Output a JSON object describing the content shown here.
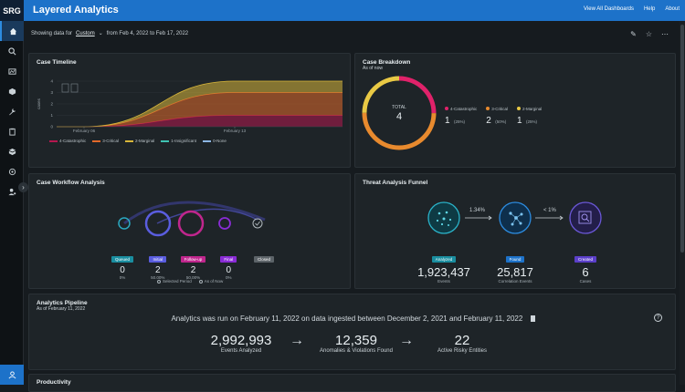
{
  "header": {
    "logo": "SRG",
    "title": "Layered Analytics",
    "links": [
      "View All Dashboards",
      "Help",
      "About"
    ]
  },
  "filter": {
    "prefix": "Showing data for",
    "selected": "Custom",
    "range": "from Feb 4, 2022 to Feb 17, 2022"
  },
  "timeline": {
    "title": "Case Timeline",
    "ylabel": "cases",
    "legend": [
      {
        "label": "4-Catastrophic",
        "color": "#b5174f"
      },
      {
        "label": "3-Critical",
        "color": "#e2692a"
      },
      {
        "label": "2-Marginal",
        "color": "#d8b63a"
      },
      {
        "label": "1-Insignificant",
        "color": "#3fc3b2"
      },
      {
        "label": "0-None",
        "color": "#8db7e5"
      }
    ]
  },
  "chart_data": {
    "type": "area",
    "x": [
      "February 06",
      "February 13"
    ],
    "ylim": [
      0,
      4
    ],
    "yticks": [
      "0",
      "1",
      "2",
      "3",
      "4"
    ],
    "ylabel": "cases",
    "series": [
      {
        "name": "4-Catastrophic",
        "values": [
          0,
          1
        ]
      },
      {
        "name": "3-Critical",
        "values": [
          0,
          2
        ]
      },
      {
        "name": "2-Marginal",
        "values": [
          0,
          1
        ]
      },
      {
        "name": "1-Insignificant",
        "values": [
          0,
          0
        ]
      },
      {
        "name": "0-None",
        "values": [
          0,
          0
        ]
      }
    ]
  },
  "breakdown": {
    "title": "Case Breakdown",
    "subtitle": "As of now",
    "total_label": "TOTAL",
    "total": "4",
    "items": [
      {
        "label": "4-Catastrophic",
        "count": "1",
        "pct": "(25%)",
        "color": "#e0226a"
      },
      {
        "label": "3-Critical",
        "count": "2",
        "pct": "(50%)",
        "color": "#e88a2e"
      },
      {
        "label": "2-Marginal",
        "count": "1",
        "pct": "(25%)",
        "color": "#e9c945"
      }
    ]
  },
  "workflow": {
    "title": "Case Workflow Analysis",
    "stages": [
      {
        "label": "Queued",
        "count": "0",
        "pct": "0%",
        "color": "#1a8ea0"
      },
      {
        "label": "Initial",
        "count": "2",
        "pct": "50.00%",
        "color": "#5a5ddf"
      },
      {
        "label": "Follow-up",
        "count": "2",
        "pct": "50.00%",
        "color": "#c0268d"
      },
      {
        "label": "Final",
        "count": "0",
        "pct": "0%",
        "color": "#8a2cd6"
      },
      {
        "label": "Closed",
        "count": "",
        "pct": "",
        "color": "#5c6368"
      }
    ],
    "legend": [
      "Selected Period",
      "As of Now"
    ]
  },
  "funnel": {
    "title": "Threat Analysis Funnel",
    "arrows": [
      "1.34%",
      "< 1%"
    ],
    "stages": [
      {
        "label": "Analyzed",
        "value": "1,923,437",
        "sub": "Events",
        "color": "#1a8ea0"
      },
      {
        "label": "Found",
        "value": "25,817",
        "sub": "Correlation Events",
        "color": "#1d72c9"
      },
      {
        "label": "Created",
        "value": "6",
        "sub": "Cases",
        "color": "#5b3fc9"
      }
    ]
  },
  "pipeline": {
    "title": "Analytics Pipeline",
    "subtitle": "As of February 11, 2022",
    "message": "Analytics was run on February 11, 2022 on data ingested between December 2, 2021 and February 11, 2022",
    "help": "?",
    "steps": [
      {
        "value": "2,992,993",
        "label": "Events Analyzed"
      },
      {
        "value": "12,359",
        "label": "Anomalies & Violations Found"
      },
      {
        "value": "22",
        "label": "Active Risky Entities"
      }
    ]
  },
  "productivity": {
    "title": "Productivity"
  }
}
